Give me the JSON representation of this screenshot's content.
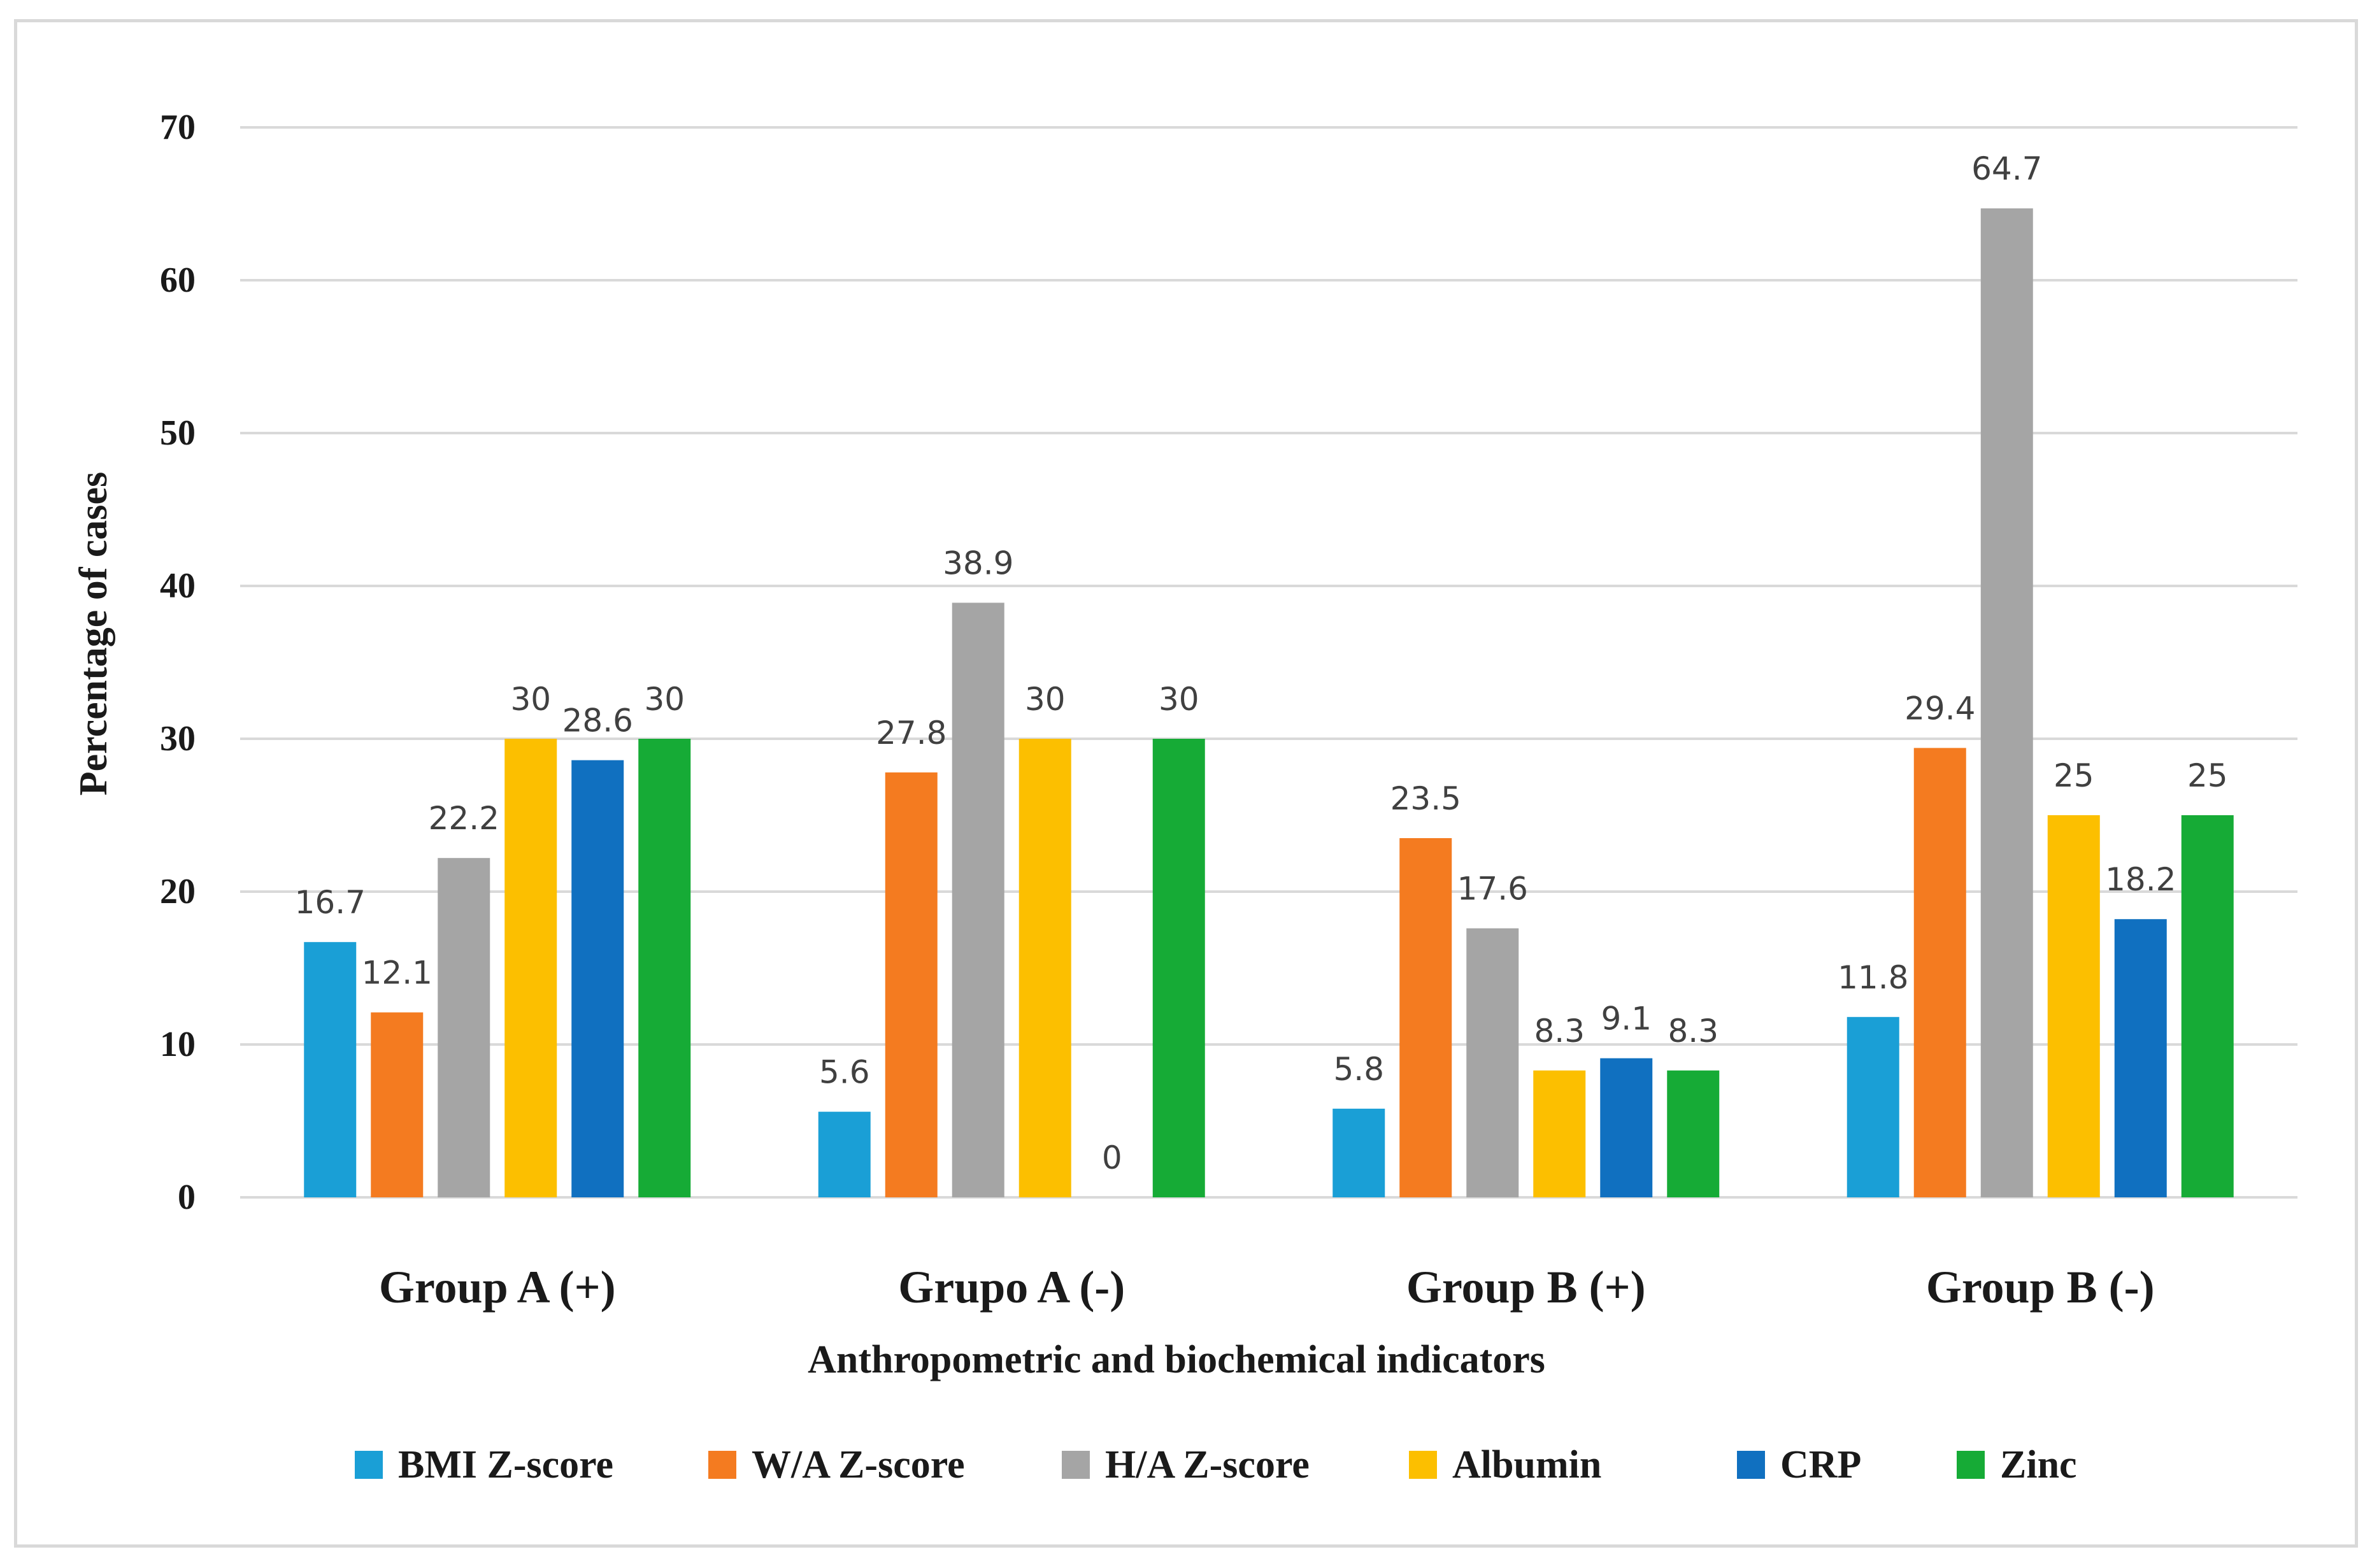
{
  "chart_data": {
    "type": "bar",
    "title": "",
    "xlabel": "Anthropometric and biochemical indicators",
    "ylabel": "Percentage of cases",
    "ylim": [
      0,
      70
    ],
    "yticks": [
      0,
      10,
      20,
      30,
      40,
      50,
      60,
      70
    ],
    "grid": true,
    "legend_position": "bottom",
    "categories": [
      "Group A (+)",
      "Grupo A (-)",
      "Group B (+)",
      "Group B (-)"
    ],
    "series": [
      {
        "name": "BMI Z-score",
        "color": "#1a9fd6",
        "values": [
          16.7,
          5.6,
          5.8,
          11.8
        ]
      },
      {
        "name": "W/A Z-score",
        "color": "#f47b20",
        "values": [
          12.1,
          27.8,
          23.5,
          29.4
        ]
      },
      {
        "name": "H/A Z-score",
        "color": "#a5a5a5",
        "values": [
          22.2,
          38.9,
          17.6,
          64.7
        ]
      },
      {
        "name": "Albumin",
        "color": "#fcbf00",
        "values": [
          30,
          30,
          8.3,
          25
        ]
      },
      {
        "name": "CRP",
        "color": "#1070c0",
        "values": [
          28.6,
          0,
          9.1,
          18.2
        ]
      },
      {
        "name": "Zinc",
        "color": "#16ab36",
        "values": [
          30,
          30,
          8.3,
          25
        ]
      }
    ]
  }
}
